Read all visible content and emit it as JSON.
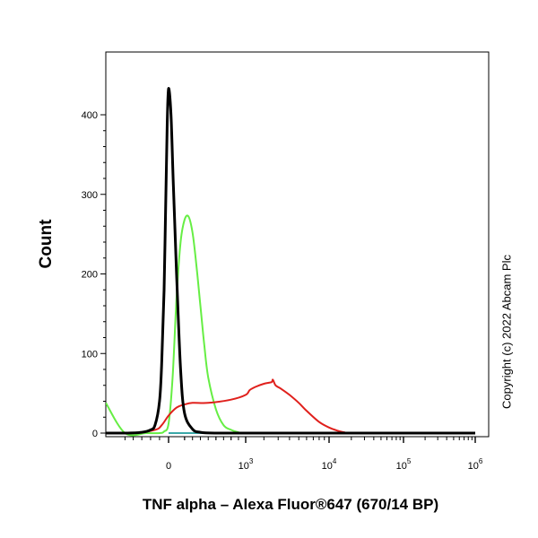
{
  "chart_data": {
    "type": "line",
    "title": "",
    "xlabel": "TNF alpha – Alexa Fluor®647 (670/14 BP)",
    "ylabel": "Count",
    "annotation": "Copyright (c) 2022 Abcam Plc",
    "ylim": [
      0,
      450
    ],
    "y_ticks": [
      0,
      100,
      200,
      300,
      400
    ],
    "x_scale": "biexponential",
    "x_ticks": [
      {
        "label": "0",
        "value": 0
      },
      {
        "base": "10",
        "exp": "3",
        "value": 1000
      },
      {
        "base": "10",
        "exp": "4",
        "value": 10000
      },
      {
        "base": "10",
        "exp": "5",
        "value": 100000
      },
      {
        "base": "10",
        "exp": "6",
        "value": 1000000
      }
    ],
    "grid": false,
    "colors": {
      "black": "#000000",
      "blue": "#1a1aa8",
      "green": "#66ee44",
      "red": "#e0201c",
      "teal": "#3aa8a8"
    },
    "series": [
      {
        "color": "#000000",
        "x": [
          -1500,
          -1000,
          -600,
          -400,
          -300,
          -200,
          -150,
          -100,
          -60,
          -30,
          0,
          30,
          60,
          100,
          150,
          200,
          300,
          400,
          600,
          1000,
          1000000.0
        ],
        "y": [
          0,
          0,
          1,
          4,
          10,
          40,
          90,
          180,
          300,
          390,
          433,
          400,
          310,
          200,
          80,
          25,
          5,
          1,
          0,
          0,
          0
        ]
      },
      {
        "color": "#1a1aa8",
        "x": [
          -1500,
          -1000,
          -600,
          -400,
          -300,
          -200,
          -150,
          -100,
          -60,
          -30,
          0,
          30,
          60,
          100,
          150,
          200,
          300,
          400,
          600,
          1000,
          1000000.0
        ],
        "y": [
          0,
          0,
          1,
          4,
          10,
          38,
          88,
          176,
          296,
          386,
          428,
          396,
          306,
          196,
          78,
          24,
          5,
          1,
          0,
          0,
          0
        ]
      },
      {
        "color": "#66ee44",
        "x": [
          -1500,
          -1000,
          -500,
          -200,
          -100,
          0,
          50,
          100,
          150,
          200,
          250,
          300,
          350,
          400,
          450,
          500,
          600,
          700,
          800,
          900,
          1000,
          1000000.0
        ],
        "y": [
          38,
          0,
          0,
          0,
          2,
          12,
          70,
          170,
          240,
          268,
          272,
          252,
          210,
          160,
          110,
          70,
          30,
          10,
          4,
          1,
          0,
          0
        ]
      },
      {
        "color": "#e0201c",
        "x": [
          -1500,
          -800,
          -300,
          -150,
          0,
          100,
          200,
          300,
          500,
          800,
          1000,
          1200,
          1500,
          2000,
          2500,
          2600,
          2800,
          3200,
          4000,
          5000,
          6000,
          8000,
          10000,
          13000,
          16000,
          20000,
          100000,
          1000000.0
        ],
        "y": [
          0,
          0,
          4,
          10,
          22,
          32,
          36,
          38,
          38,
          42,
          48,
          54,
          58,
          62,
          64,
          67,
          60,
          56,
          48,
          38,
          28,
          14,
          7,
          3,
          1,
          0,
          0,
          0
        ]
      },
      {
        "color": "#3aa8a8",
        "x": [
          0,
          1000000.0
        ],
        "y": [
          0,
          0
        ]
      }
    ]
  }
}
